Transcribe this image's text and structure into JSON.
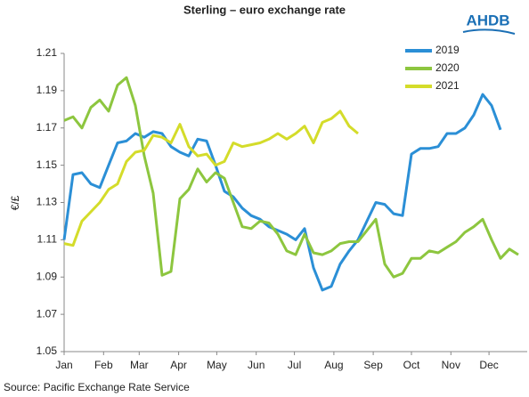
{
  "chart_data": {
    "type": "line",
    "title": "Sterling – euro exchange rate",
    "logo": "AHDB",
    "ylabel": "€/£",
    "source": "Source: Pacific Exchange Rate Service",
    "legend": "upper right",
    "x": [
      0,
      1,
      2,
      3,
      4,
      5,
      6,
      7,
      8,
      9,
      10,
      11,
      12,
      13,
      14,
      15,
      16,
      17,
      18,
      19,
      20,
      21,
      22,
      23,
      24,
      25,
      26,
      27,
      28,
      29,
      30,
      31,
      32,
      33,
      34,
      35,
      36,
      37,
      38,
      39,
      40,
      41,
      42,
      43,
      44,
      45,
      46,
      47,
      48,
      49,
      50,
      51
    ],
    "xlim": [
      0,
      52
    ],
    "xticks": [
      {
        "value": 0,
        "label": "Jan"
      },
      {
        "value": 4.43,
        "label": "Feb"
      },
      {
        "value": 8.43,
        "label": "Mar"
      },
      {
        "value": 12.86,
        "label": "Apr"
      },
      {
        "value": 17.14,
        "label": "May"
      },
      {
        "value": 21.57,
        "label": "Jun"
      },
      {
        "value": 25.86,
        "label": "Jul"
      },
      {
        "value": 30.29,
        "label": "Aug"
      },
      {
        "value": 34.71,
        "label": "Sep"
      },
      {
        "value": 39,
        "label": "Oct"
      },
      {
        "value": 43.43,
        "label": "Nov"
      },
      {
        "value": 47.71,
        "label": "Dec"
      }
    ],
    "ylim": [
      1.05,
      1.21
    ],
    "yticks": [
      1.05,
      1.07,
      1.09,
      1.11,
      1.13,
      1.15,
      1.17,
      1.19,
      1.21
    ],
    "series": [
      {
        "name": "2019",
        "color": "#2b8fd6",
        "values": [
          1.11,
          1.145,
          1.146,
          1.14,
          1.138,
          1.15,
          1.162,
          1.163,
          1.167,
          1.165,
          1.168,
          1.167,
          1.16,
          1.157,
          1.155,
          1.164,
          1.163,
          1.15,
          1.136,
          1.133,
          1.127,
          1.123,
          1.121,
          1.117,
          1.115,
          1.113,
          1.11,
          1.116,
          1.095,
          1.083,
          1.085,
          1.097,
          1.104,
          1.11,
          1.12,
          1.13,
          1.129,
          1.124,
          1.123,
          1.156,
          1.159,
          1.159,
          1.16,
          1.167,
          1.167,
          1.17,
          1.177,
          1.188,
          1.182,
          1.169,
          null,
          null
        ]
      },
      {
        "name": "2020",
        "color": "#8dc63f",
        "values": [
          1.174,
          1.176,
          1.17,
          1.181,
          1.185,
          1.179,
          1.193,
          1.197,
          1.182,
          1.155,
          1.135,
          1.091,
          1.093,
          1.132,
          1.137,
          1.148,
          1.141,
          1.146,
          1.143,
          1.13,
          1.117,
          1.116,
          1.12,
          1.119,
          1.113,
          1.104,
          1.102,
          1.113,
          1.103,
          1.102,
          1.104,
          1.108,
          1.109,
          1.109,
          1.115,
          1.121,
          1.097,
          1.09,
          1.092,
          1.1,
          1.1,
          1.104,
          1.103,
          1.106,
          1.109,
          1.114,
          1.117,
          1.121,
          1.11,
          1.1,
          1.105,
          1.102
        ]
      },
      {
        "name": "2021",
        "color": "#d4dc2a",
        "values": [
          1.108,
          1.107,
          1.12,
          1.125,
          1.13,
          1.137,
          1.14,
          1.152,
          1.157,
          1.158,
          1.166,
          1.165,
          1.162,
          1.172,
          1.16,
          1.155,
          1.156,
          1.15,
          1.152,
          1.162,
          1.16,
          1.161,
          1.162,
          1.164,
          1.167,
          1.164,
          1.167,
          1.171,
          1.162,
          1.173,
          1.175,
          1.179,
          1.171,
          1.167,
          null,
          null,
          null,
          null,
          null,
          null,
          null,
          null,
          null,
          null,
          null,
          null,
          null,
          null,
          null,
          null,
          null,
          null
        ]
      }
    ]
  }
}
